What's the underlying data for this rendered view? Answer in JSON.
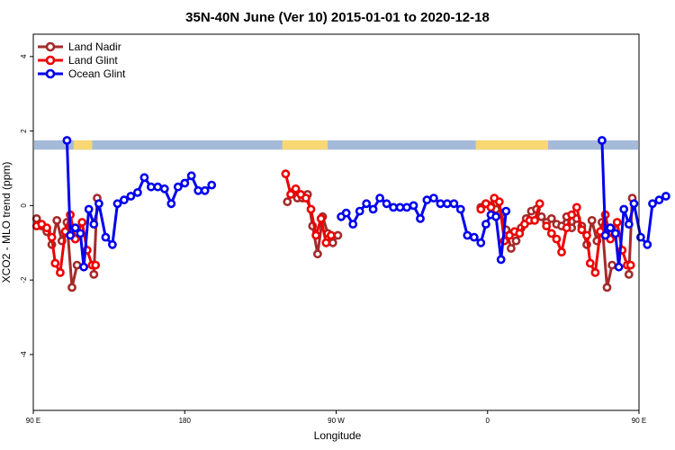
{
  "chart_data": {
    "type": "line",
    "title": "35N-40N June (Ver 10)   2015-01-01 to 2020-12-18",
    "xlabel": "Longitude",
    "ylabel": "XCO2 - MLO trend (ppm)",
    "xlim": [
      90,
      450
    ],
    "ylim": [
      -5.5,
      4.6
    ],
    "x_ticks": [
      {
        "value": 90,
        "label": "90 E"
      },
      {
        "value": 180,
        "label": "180"
      },
      {
        "value": 270,
        "label": "90 W"
      },
      {
        "value": 360,
        "label": "0"
      },
      {
        "value": 450,
        "label": "90 E"
      },
      {
        "value": 540,
        "label": "180"
      }
    ],
    "y_ticks": [
      -4,
      -2,
      0,
      2,
      4
    ],
    "legend": {
      "position": "top-left",
      "entries": [
        "Land Nadir",
        "Land Glint",
        "Ocean Glint"
      ]
    },
    "land_band": {
      "y_range": [
        1.5,
        1.75
      ],
      "ocean_color": "#a5bad9",
      "land_color": "#f8d774",
      "land_segments": [
        [
          114,
          125
        ],
        [
          238,
          265
        ],
        [
          353,
          396
        ],
        [
          485,
          503
        ]
      ]
    },
    "series": [
      {
        "name": "Land Nadir",
        "color": "#a52a2a",
        "segments": [
          [
            [
              92,
              -0.35
            ],
            [
              95,
              -0.55
            ],
            [
              98,
              -0.7
            ],
            [
              101,
              -1.05
            ],
            [
              104,
              -0.4
            ],
            [
              107,
              -0.95
            ],
            [
              110,
              -0.45
            ],
            [
              113,
              -2.2
            ],
            [
              116,
              -1.6
            ]
          ],
          [
            [
              126,
              -1.85
            ],
            [
              128,
              0.2
            ]
          ],
          [
            [
              241,
              0.1
            ],
            [
              244,
              0.35
            ],
            [
              247,
              0.2
            ],
            [
              250,
              0.2
            ],
            [
              253,
              0.3
            ],
            [
              256,
              -0.55
            ],
            [
              259,
              -1.3
            ],
            [
              262,
              -0.3
            ],
            [
              265,
              -0.75
            ],
            [
              268,
              -1.0
            ],
            [
              271,
              -0.8
            ]
          ],
          [
            [
              356,
              -0.05
            ],
            [
              359,
              0.05
            ],
            [
              362,
              0.0
            ],
            [
              365,
              -0.1
            ],
            [
              368,
              -0.2
            ],
            [
              371,
              -0.65
            ],
            [
              374,
              -1.15
            ],
            [
              377,
              -0.95
            ],
            [
              380,
              -0.6
            ],
            [
              383,
              -0.35
            ],
            [
              386,
              -0.15
            ],
            [
              389,
              -0.1
            ],
            [
              392,
              -0.3
            ]
          ],
          [
            [
              395,
              -0.45
            ],
            [
              398,
              -0.35
            ],
            [
              401,
              -0.5
            ],
            [
              404,
              -0.55
            ],
            [
              407,
              -0.3
            ],
            [
              410,
              -0.6
            ],
            [
              413,
              -0.35
            ],
            [
              416,
              -0.55
            ],
            [
              419,
              -1.05
            ],
            [
              422,
              -0.4
            ],
            [
              425,
              -0.95
            ],
            [
              428,
              -0.45
            ],
            [
              431,
              -2.2
            ],
            [
              434,
              -1.6
            ]
          ],
          [
            [
              444,
              -1.85
            ],
            [
              446,
              0.2
            ]
          ]
        ]
      },
      {
        "name": "Land Glint",
        "color": "#ee0000",
        "segments": [
          [
            [
              92,
              -0.55
            ],
            [
              95,
              -0.5
            ],
            [
              98,
              -0.6
            ],
            [
              101,
              -0.85
            ],
            [
              103,
              -1.55
            ],
            [
              106,
              -1.8
            ],
            [
              109,
              -0.7
            ],
            [
              112,
              -0.25
            ],
            [
              115,
              -0.9
            ],
            [
              119,
              -0.45
            ],
            [
              122,
              -1.2
            ],
            [
              125,
              -1.6
            ],
            [
              127,
              -1.6
            ]
          ],
          [
            [
              240,
              0.85
            ],
            [
              243,
              0.3
            ],
            [
              246,
              0.45
            ],
            [
              249,
              0.3
            ],
            [
              252,
              0.2
            ],
            [
              255,
              -0.1
            ],
            [
              258,
              -0.8
            ],
            [
              261,
              -0.35
            ],
            [
              264,
              -1.0
            ],
            [
              267,
              -0.8
            ]
          ],
          [
            [
              356,
              -0.1
            ],
            [
              359,
              0.05
            ],
            [
              362,
              -0.05
            ],
            [
              364,
              0.2
            ],
            [
              367,
              0.1
            ],
            [
              370,
              -0.95
            ],
            [
              373,
              -0.8
            ],
            [
              376,
              -0.7
            ],
            [
              379,
              -0.75
            ],
            [
              382,
              -0.5
            ],
            [
              385,
              -0.4
            ],
            [
              388,
              -0.4
            ],
            [
              391,
              0.05
            ]
          ],
          [
            [
              395,
              -0.55
            ],
            [
              398,
              -0.75
            ],
            [
              401,
              -0.9
            ],
            [
              404,
              -1.25
            ],
            [
              407,
              -0.6
            ],
            [
              410,
              -0.25
            ],
            [
              413,
              -0.05
            ],
            [
              416,
              -0.65
            ],
            [
              419,
              -0.8
            ],
            [
              421,
              -1.55
            ],
            [
              424,
              -1.8
            ],
            [
              427,
              -0.7
            ],
            [
              430,
              -0.25
            ],
            [
              433,
              -0.9
            ],
            [
              437,
              -0.45
            ],
            [
              440,
              -1.2
            ],
            [
              443,
              -1.6
            ],
            [
              445,
              -1.6
            ]
          ]
        ]
      },
      {
        "name": "Ocean Glint",
        "color": "#0000ee",
        "segments": [
          [
            [
              110,
              1.75
            ],
            [
              112,
              -0.8
            ],
            [
              115,
              -0.6
            ],
            [
              118,
              -0.75
            ],
            [
              120,
              -1.65
            ],
            [
              123,
              -0.1
            ],
            [
              126,
              -0.5
            ],
            [
              129,
              0.05
            ],
            [
              133,
              -0.85
            ],
            [
              137,
              -1.05
            ],
            [
              140,
              0.05
            ],
            [
              144,
              0.15
            ],
            [
              148,
              0.25
            ],
            [
              152,
              0.35
            ],
            [
              156,
              0.75
            ],
            [
              160,
              0.5
            ],
            [
              164,
              0.5
            ],
            [
              168,
              0.45
            ],
            [
              172,
              0.05
            ],
            [
              176,
              0.5
            ],
            [
              180,
              0.6
            ],
            [
              184,
              0.8
            ],
            [
              188,
              0.4
            ],
            [
              192,
              0.4
            ],
            [
              196,
              0.55
            ]
          ],
          [
            [
              273,
              -0.3
            ],
            [
              276,
              -0.2
            ],
            [
              280,
              -0.5
            ],
            [
              284,
              -0.15
            ],
            [
              288,
              0.05
            ],
            [
              292,
              -0.1
            ],
            [
              296,
              0.2
            ],
            [
              300,
              0.05
            ],
            [
              304,
              -0.05
            ],
            [
              308,
              -0.05
            ],
            [
              312,
              -0.05
            ],
            [
              316,
              0.0
            ],
            [
              320,
              -0.35
            ],
            [
              324,
              0.15
            ],
            [
              328,
              0.2
            ],
            [
              332,
              0.05
            ],
            [
              336,
              0.05
            ],
            [
              340,
              0.05
            ],
            [
              344,
              -0.1
            ],
            [
              348,
              -0.8
            ],
            [
              352,
              -0.85
            ],
            [
              356,
              -1.0
            ],
            [
              359,
              -0.5
            ],
            [
              362,
              -0.25
            ],
            [
              365,
              -0.3
            ],
            [
              368,
              -1.45
            ],
            [
              371,
              -0.15
            ]
          ],
          [
            [
              428,
              1.75
            ],
            [
              430,
              -0.8
            ],
            [
              433,
              -0.6
            ],
            [
              436,
              -0.75
            ],
            [
              438,
              -1.65
            ],
            [
              441,
              -0.1
            ],
            [
              444,
              -0.5
            ],
            [
              447,
              0.05
            ],
            [
              451,
              -0.85
            ],
            [
              455,
              -1.05
            ],
            [
              458,
              0.05
            ],
            [
              462,
              0.15
            ],
            [
              466,
              0.25
            ]
          ]
        ]
      }
    ]
  }
}
